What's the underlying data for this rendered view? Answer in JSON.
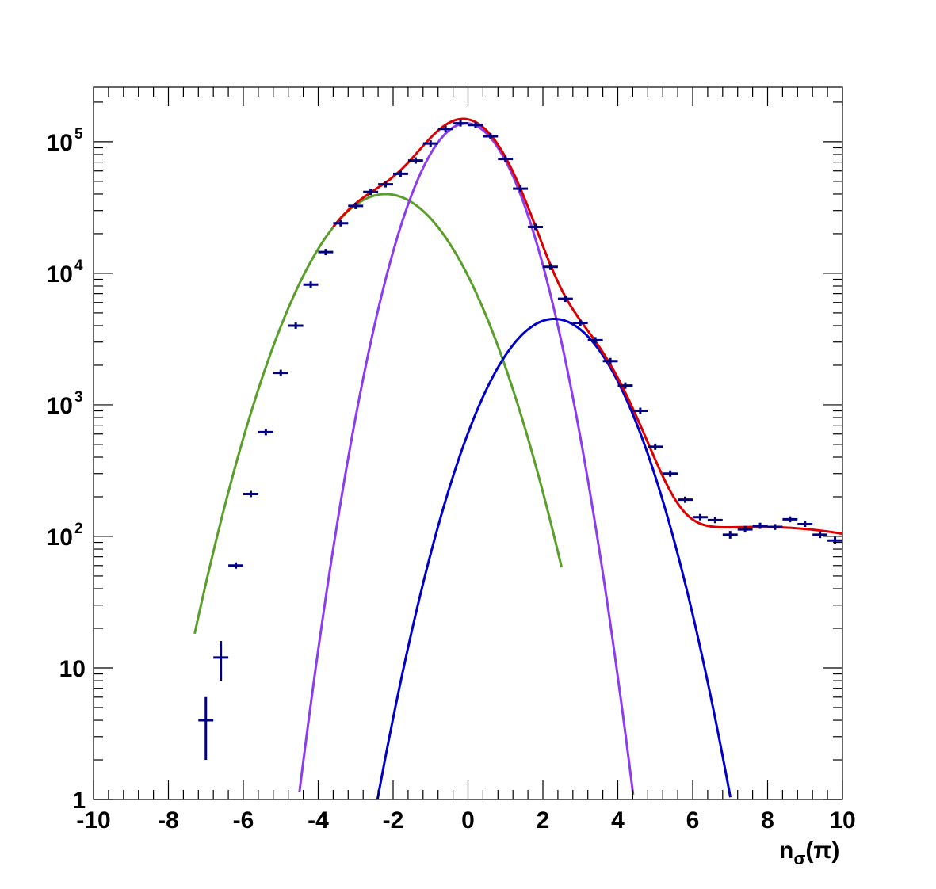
{
  "chart_data": {
    "type": "line",
    "xlabel": "n",
    "xlabel_sub": "σ",
    "xlabel_suffix": "(π)",
    "ylabel": "",
    "xlim": [
      -10,
      10
    ],
    "ylim": [
      1,
      260000
    ],
    "yscale": "log",
    "grid": false,
    "x_ticks": [
      -10,
      -8,
      -6,
      -4,
      -2,
      0,
      2,
      4,
      6,
      8,
      10
    ],
    "x_tick_labels": [
      "-10",
      "-8",
      "-6",
      "-4",
      "-2",
      "0",
      "2",
      "4",
      "6",
      "8",
      "10"
    ],
    "y_ticks": [
      {
        "value": 1,
        "base": "1",
        "exp": ""
      },
      {
        "value": 10,
        "base": "10",
        "exp": ""
      },
      {
        "value": 100,
        "base": "10",
        "exp": "2"
      },
      {
        "value": 1000,
        "base": "10",
        "exp": "3"
      },
      {
        "value": 10000,
        "base": "10",
        "exp": "4"
      },
      {
        "value": 100000,
        "base": "10",
        "exp": "5"
      }
    ],
    "data_points": {
      "color": "#00007f",
      "xerr": 0.2,
      "points": [
        {
          "x": -7.0,
          "y": 4,
          "ylo": 2,
          "yhi": 6
        },
        {
          "x": -6.6,
          "y": 12,
          "ylo": 8,
          "yhi": 16
        },
        {
          "x": -6.2,
          "y": 60
        },
        {
          "x": -5.8,
          "y": 210
        },
        {
          "x": -5.4,
          "y": 620
        },
        {
          "x": -5.0,
          "y": 1750
        },
        {
          "x": -4.6,
          "y": 4000
        },
        {
          "x": -4.2,
          "y": 8200
        },
        {
          "x": -3.8,
          "y": 14500
        },
        {
          "x": -3.4,
          "y": 24000
        },
        {
          "x": -3.0,
          "y": 32500
        },
        {
          "x": -2.6,
          "y": 41500
        },
        {
          "x": -2.2,
          "y": 47500
        },
        {
          "x": -1.8,
          "y": 57000
        },
        {
          "x": -1.4,
          "y": 72000
        },
        {
          "x": -1.0,
          "y": 97000
        },
        {
          "x": -0.6,
          "y": 125000
        },
        {
          "x": -0.2,
          "y": 138000
        },
        {
          "x": 0.2,
          "y": 134000
        },
        {
          "x": 0.6,
          "y": 110000
        },
        {
          "x": 1.0,
          "y": 74000
        },
        {
          "x": 1.4,
          "y": 44000
        },
        {
          "x": 1.8,
          "y": 22500
        },
        {
          "x": 2.2,
          "y": 11200
        },
        {
          "x": 2.6,
          "y": 6400
        },
        {
          "x": 3.0,
          "y": 4200
        },
        {
          "x": 3.4,
          "y": 3100
        },
        {
          "x": 3.8,
          "y": 2150
        },
        {
          "x": 4.2,
          "y": 1400
        },
        {
          "x": 4.6,
          "y": 900
        },
        {
          "x": 5.0,
          "y": 480
        },
        {
          "x": 5.4,
          "y": 300
        },
        {
          "x": 5.8,
          "y": 190
        },
        {
          "x": 6.2,
          "y": 140
        },
        {
          "x": 6.6,
          "y": 133,
          "ylo": 126,
          "yhi": 140
        },
        {
          "x": 7.0,
          "y": 103,
          "ylo": 96,
          "yhi": 110
        },
        {
          "x": 7.4,
          "y": 113,
          "ylo": 107,
          "yhi": 120
        },
        {
          "x": 7.8,
          "y": 120,
          "ylo": 114,
          "yhi": 127
        },
        {
          "x": 8.2,
          "y": 118,
          "ylo": 112,
          "yhi": 124
        },
        {
          "x": 8.6,
          "y": 135,
          "ylo": 128,
          "yhi": 142
        },
        {
          "x": 9.0,
          "y": 124,
          "ylo": 118,
          "yhi": 131
        },
        {
          "x": 9.4,
          "y": 103,
          "ylo": 97,
          "yhi": 109
        },
        {
          "x": 9.8,
          "y": 93,
          "ylo": 87,
          "yhi": 99
        }
      ]
    },
    "series": [
      {
        "color": "#5a9e2a",
        "mu": -2.2,
        "sigma": 1.3,
        "amp": 40000,
        "xmin": -7.3,
        "xmax": 2.5
      },
      {
        "color": "#8c3cf0",
        "mu": -0.05,
        "sigma": 0.92,
        "amp": 138000,
        "xmin": -4.5,
        "xmax": 4.5
      },
      {
        "color": "#0000c8",
        "mu": 2.3,
        "sigma": 1.15,
        "amp": 4500,
        "xmin": -3.2,
        "xmax": 7.6
      }
    ],
    "total_fit": {
      "color": "#dd0000",
      "xmin": 2.0,
      "xmax": 10.0,
      "tail": {
        "amp": 118,
        "mu": 7.8,
        "sigma": 4.5
      }
    }
  }
}
